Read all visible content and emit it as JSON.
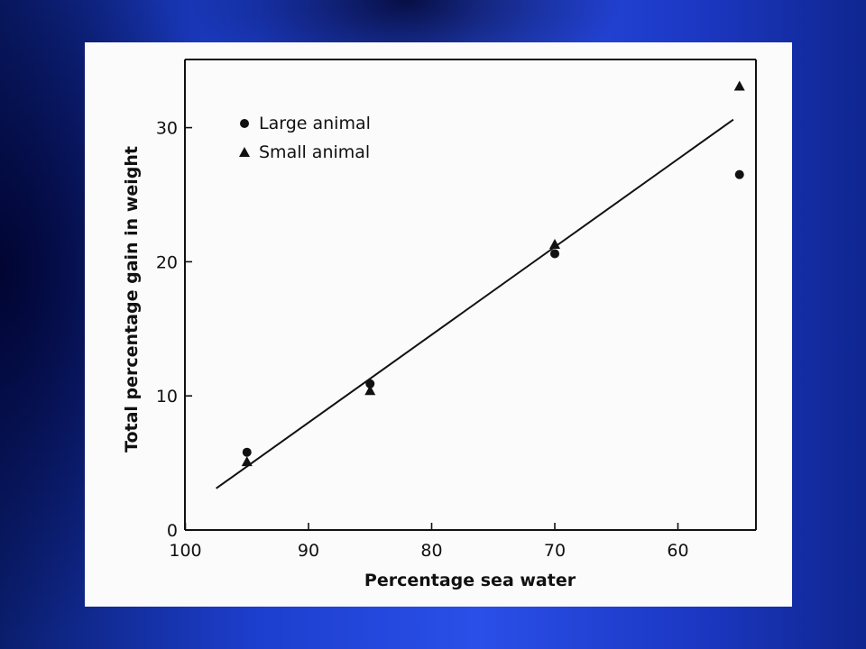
{
  "chart_data": {
    "type": "scatter",
    "xlabel": "Percentage sea water",
    "ylabel": "Total percentage gain in weight",
    "xlim": [
      100,
      55
    ],
    "ylim": [
      0,
      35
    ],
    "x_ticks": [
      100,
      90,
      80,
      70,
      60
    ],
    "y_ticks": [
      0,
      10,
      20,
      30
    ],
    "grid": false,
    "legend_position": "top-left",
    "series": [
      {
        "name": "Large animal",
        "marker": "circle",
        "points": [
          {
            "x": 95,
            "y": 5.8
          },
          {
            "x": 85,
            "y": 10.9
          },
          {
            "x": 70,
            "y": 20.6
          },
          {
            "x": 55,
            "y": 26.5
          }
        ]
      },
      {
        "name": "Small animal",
        "marker": "triangle",
        "points": [
          {
            "x": 95,
            "y": 5.1
          },
          {
            "x": 85,
            "y": 10.4
          },
          {
            "x": 70,
            "y": 21.3
          },
          {
            "x": 55,
            "y": 33.1
          }
        ]
      }
    ],
    "fit_line": {
      "x": [
        97.5,
        55.5
      ],
      "y": [
        3.1,
        30.6
      ]
    },
    "colors": {
      "marks": "#111111",
      "card": "#fbfbfb"
    }
  }
}
